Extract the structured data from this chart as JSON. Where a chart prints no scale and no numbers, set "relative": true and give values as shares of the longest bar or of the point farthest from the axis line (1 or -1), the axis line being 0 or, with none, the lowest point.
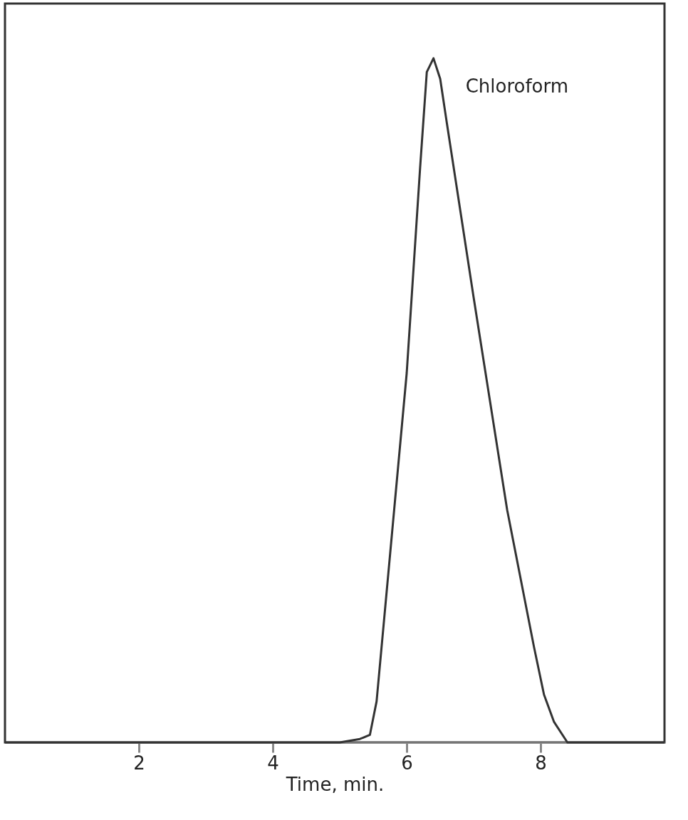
{
  "chart_data": {
    "type": "line",
    "relative": true,
    "xlabel": "Time, min.",
    "x": [
      0,
      5.0,
      5.3,
      5.45,
      5.55,
      5.7,
      6.0,
      6.2,
      6.3,
      6.4,
      6.5,
      6.6,
      7.0,
      7.5,
      7.9,
      8.05,
      8.2,
      8.4,
      9.85
    ],
    "series": [
      {
        "color": "#333333",
        "values": [
          0,
          0,
          0.005,
          0.011,
          0.06,
          0.22,
          0.54,
          0.84,
          0.98,
          1.0,
          0.97,
          0.905,
          0.65,
          0.34,
          0.14,
          0.07,
          0.03,
          0,
          0
        ]
      }
    ],
    "xlim": [
      0,
      9.85
    ],
    "xticks": [
      2,
      4,
      6,
      8
    ],
    "annotations": [
      {
        "text": "Chloroform",
        "x": 6.4,
        "y": 1.0
      }
    ],
    "grid": false,
    "legend": false,
    "marker": "none",
    "line_style": "solid"
  }
}
